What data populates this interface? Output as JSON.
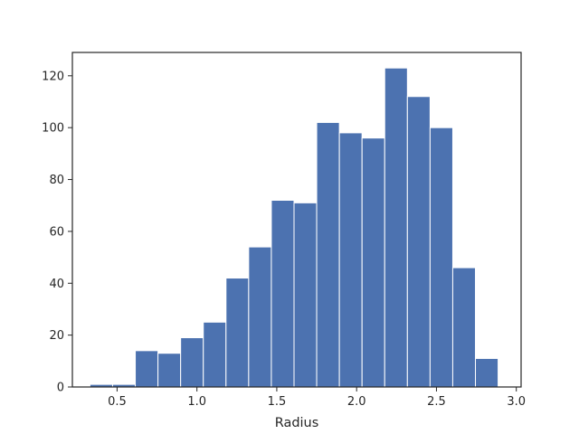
{
  "chart_data": {
    "type": "histogram",
    "xlabel": "Radius",
    "ylabel": "",
    "title": "",
    "xlim": [
      0.22,
      3.03
    ],
    "ylim": [
      0,
      129
    ],
    "bar_color": "#4c72b0",
    "bar_edge_color": "#ffffff",
    "bins": [
      {
        "x0": 0.33,
        "x1": 0.472,
        "value": 1
      },
      {
        "x0": 0.472,
        "x1": 0.614,
        "value": 1
      },
      {
        "x0": 0.614,
        "x1": 0.756,
        "value": 14
      },
      {
        "x0": 0.756,
        "x1": 0.898,
        "value": 13
      },
      {
        "x0": 0.898,
        "x1": 1.04,
        "value": 19
      },
      {
        "x0": 1.04,
        "x1": 1.182,
        "value": 25
      },
      {
        "x0": 1.182,
        "x1": 1.324,
        "value": 42
      },
      {
        "x0": 1.324,
        "x1": 1.466,
        "value": 54
      },
      {
        "x0": 1.466,
        "x1": 1.608,
        "value": 72
      },
      {
        "x0": 1.608,
        "x1": 1.75,
        "value": 71
      },
      {
        "x0": 1.75,
        "x1": 1.892,
        "value": 102
      },
      {
        "x0": 1.892,
        "x1": 2.034,
        "value": 98
      },
      {
        "x0": 2.034,
        "x1": 2.176,
        "value": 96
      },
      {
        "x0": 2.176,
        "x1": 2.318,
        "value": 123
      },
      {
        "x0": 2.318,
        "x1": 2.46,
        "value": 112
      },
      {
        "x0": 2.46,
        "x1": 2.602,
        "value": 100
      },
      {
        "x0": 2.602,
        "x1": 2.744,
        "value": 46
      },
      {
        "x0": 2.744,
        "x1": 2.886,
        "value": 11
      }
    ],
    "xticks": [
      0.5,
      1.0,
      1.5,
      2.0,
      2.5,
      3.0
    ],
    "xtick_labels": [
      "0.5",
      "1.0",
      "1.5",
      "2.0",
      "2.5",
      "3.0"
    ],
    "yticks": [
      0,
      20,
      40,
      60,
      80,
      100,
      120
    ],
    "ytick_labels": [
      "0",
      "20",
      "40",
      "60",
      "80",
      "100",
      "120"
    ],
    "grid": false,
    "legend": "none"
  }
}
